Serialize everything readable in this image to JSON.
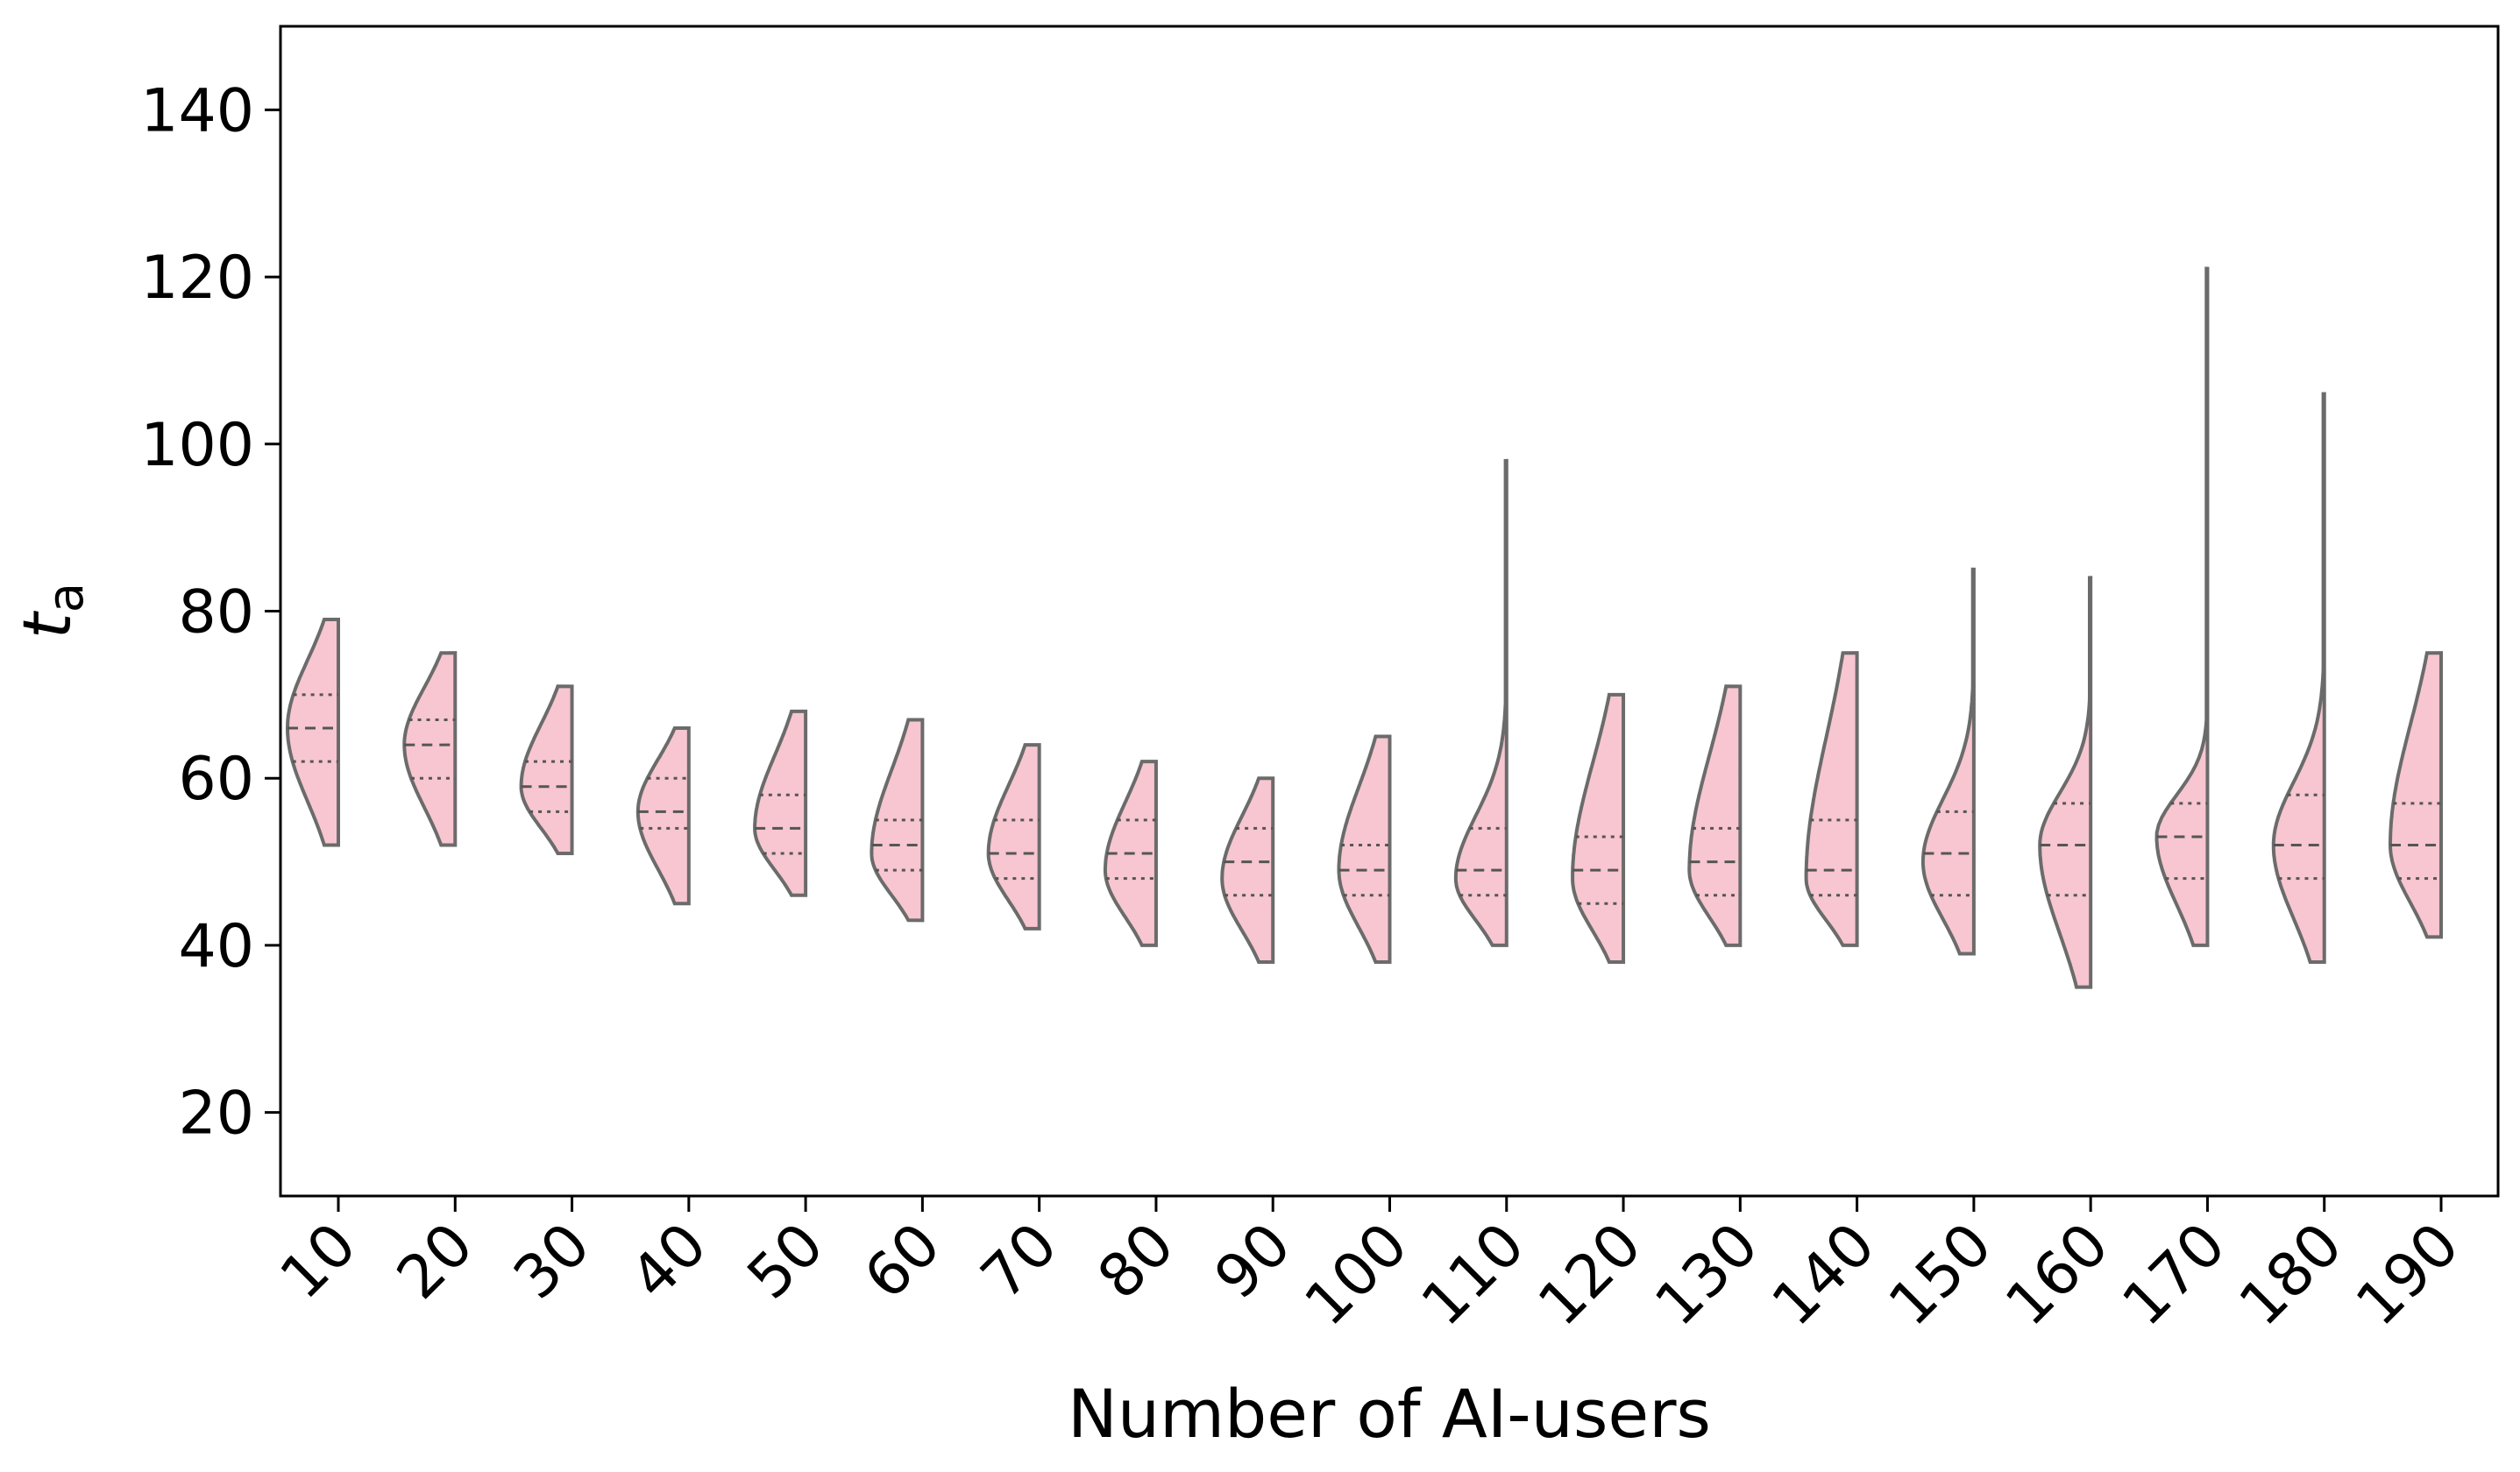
{
  "chart_data": {
    "type": "violin",
    "split": "half-left",
    "xlabel": "Number of AI-users",
    "ylabel_main": "t",
    "ylabel_sub": "a",
    "ylim": [
      10,
      150
    ],
    "yticks": [
      20,
      40,
      60,
      80,
      100,
      120,
      140
    ],
    "x_tick_rotation": 45,
    "grid": false,
    "fill_color": "#f7c6d0",
    "edge_color": "#6b6b6b",
    "categories": [
      "10",
      "20",
      "30",
      "40",
      "50",
      "60",
      "70",
      "80",
      "90",
      "100",
      "110",
      "120",
      "130",
      "140",
      "150",
      "160",
      "170",
      "180",
      "190"
    ],
    "violins": [
      {
        "min": 52,
        "max": 79,
        "q1": 62,
        "median": 66,
        "q3": 70,
        "mode": 66,
        "tail": 0
      },
      {
        "min": 52,
        "max": 75,
        "q1": 60,
        "median": 64,
        "q3": 67,
        "mode": 64,
        "tail": 0
      },
      {
        "min": 51,
        "max": 71,
        "q1": 56,
        "median": 59,
        "q3": 62,
        "mode": 59,
        "tail": 0
      },
      {
        "min": 45,
        "max": 66,
        "q1": 54,
        "median": 56,
        "q3": 60,
        "mode": 56,
        "tail": 0
      },
      {
        "min": 46,
        "max": 68,
        "q1": 51,
        "median": 54,
        "q3": 58,
        "mode": 54,
        "tail": 0
      },
      {
        "min": 43,
        "max": 67,
        "q1": 49,
        "median": 52,
        "q3": 55,
        "mode": 51,
        "tail": 0
      },
      {
        "min": 42,
        "max": 64,
        "q1": 48,
        "median": 51,
        "q3": 55,
        "mode": 51,
        "tail": 0
      },
      {
        "min": 40,
        "max": 62,
        "q1": 48,
        "median": 51,
        "q3": 55,
        "mode": 49,
        "tail": 0
      },
      {
        "min": 38,
        "max": 60,
        "q1": 46,
        "median": 50,
        "q3": 54,
        "mode": 48,
        "tail": 0
      },
      {
        "min": 38,
        "max": 65,
        "q1": 46,
        "median": 49,
        "q3": 52,
        "mode": 49,
        "tail": 0
      },
      {
        "min": 40,
        "max": 98,
        "q1": 46,
        "median": 49,
        "q3": 54,
        "mode": 48,
        "tail": 1
      },
      {
        "min": 38,
        "max": 70,
        "q1": 45,
        "median": 49,
        "q3": 53,
        "mode": 48,
        "tail": 0
      },
      {
        "min": 40,
        "max": 71,
        "q1": 46,
        "median": 50,
        "q3": 54,
        "mode": 49,
        "tail": 0
      },
      {
        "min": 40,
        "max": 75,
        "q1": 46,
        "median": 49,
        "q3": 55,
        "mode": 48,
        "tail": 0
      },
      {
        "min": 39,
        "max": 85,
        "q1": 46,
        "median": 51,
        "q3": 56,
        "mode": 50,
        "tail": 1
      },
      {
        "min": 35,
        "max": 84,
        "q1": 46,
        "median": 52,
        "q3": 57,
        "mode": 52,
        "tail": 1
      },
      {
        "min": 40,
        "max": 121,
        "q1": 48,
        "median": 53,
        "q3": 57,
        "mode": 53,
        "tail": 1
      },
      {
        "min": 38,
        "max": 106,
        "q1": 48,
        "median": 52,
        "q3": 58,
        "mode": 52,
        "tail": 1
      },
      {
        "min": 41,
        "max": 75,
        "q1": 48,
        "median": 52,
        "q3": 57,
        "mode": 52,
        "tail": 0
      }
    ]
  }
}
